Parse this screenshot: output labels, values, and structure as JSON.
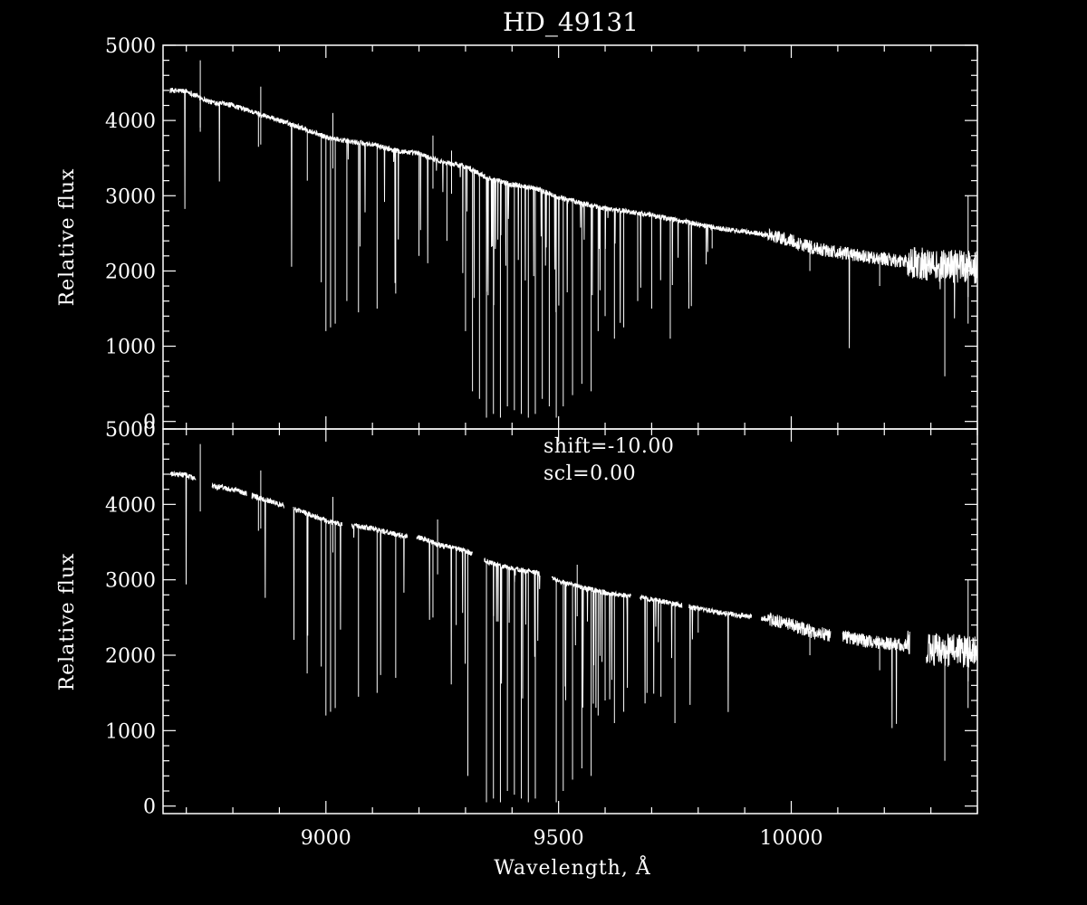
{
  "title": "HD_49131",
  "chart_data": [
    {
      "id": "top",
      "type": "line",
      "ylabel": "Relative flux",
      "xlim": [
        8650,
        10400
      ],
      "ylim": [
        -100,
        5000
      ],
      "yticks": [
        0,
        1000,
        2000,
        3000,
        4000,
        5000
      ],
      "xticks": [
        9000,
        9500,
        10000
      ],
      "x_tick_labels_shown": false,
      "annotations": [],
      "gaps": [],
      "series": [
        {
          "continuum": [
            [
              8665,
              4400
            ],
            [
              8700,
              4390
            ],
            [
              8750,
              4250
            ],
            [
              8800,
              4200
            ],
            [
              8850,
              4100
            ],
            [
              8900,
              4000
            ],
            [
              8950,
              3900
            ],
            [
              9000,
              3780
            ],
            [
              9050,
              3720
            ],
            [
              9100,
              3680
            ],
            [
              9150,
              3600
            ],
            [
              9200,
              3560
            ],
            [
              9250,
              3450
            ],
            [
              9300,
              3390
            ],
            [
              9350,
              3230
            ],
            [
              9400,
              3150
            ],
            [
              9450,
              3100
            ],
            [
              9500,
              2980
            ],
            [
              9550,
              2900
            ],
            [
              9600,
              2830
            ],
            [
              9650,
              2790
            ],
            [
              9700,
              2740
            ],
            [
              9750,
              2680
            ],
            [
              9800,
              2620
            ],
            [
              9850,
              2560
            ],
            [
              9900,
              2520
            ],
            [
              9950,
              2480
            ],
            [
              10000,
              2400
            ],
            [
              10050,
              2300
            ],
            [
              10100,
              2250
            ],
            [
              10150,
              2200
            ],
            [
              10200,
              2160
            ],
            [
              10250,
              2120
            ],
            [
              10300,
              2080
            ],
            [
              10350,
              2060
            ],
            [
              10400,
              2050
            ]
          ],
          "dips": [
            [
              8730,
              3850
            ],
            [
              8855,
              3650
            ],
            [
              8960,
              3200
            ],
            [
              8990,
              1850
            ],
            [
              9000,
              1200
            ],
            [
              9010,
              1250
            ],
            [
              9020,
              1300
            ],
            [
              9045,
              1600
            ],
            [
              9070,
              1450
            ],
            [
              9110,
              1500
            ],
            [
              9150,
              1700
            ],
            [
              9200,
              2200
            ],
            [
              9260,
              2400
            ],
            [
              9300,
              1200
            ],
            [
              9315,
              400
            ],
            [
              9330,
              300
            ],
            [
              9345,
              50
            ],
            [
              9360,
              100
            ],
            [
              9375,
              50
            ],
            [
              9390,
              200
            ],
            [
              9405,
              150
            ],
            [
              9420,
              100
            ],
            [
              9435,
              50
            ],
            [
              9450,
              100
            ],
            [
              9465,
              300
            ],
            [
              9480,
              200
            ],
            [
              9495,
              50
            ],
            [
              9510,
              200
            ],
            [
              9530,
              350
            ],
            [
              9550,
              500
            ],
            [
              9570,
              400
            ],
            [
              9585,
              1200
            ],
            [
              9600,
              1400
            ],
            [
              9620,
              1100
            ],
            [
              9640,
              1250
            ],
            [
              9670,
              1600
            ],
            [
              9700,
              1500
            ],
            [
              9740,
              1100
            ],
            [
              9780,
              1500
            ],
            [
              9830,
              2300
            ],
            [
              10040,
              2000
            ],
            [
              10190,
              1800
            ],
            [
              10330,
              600
            ],
            [
              10380,
              1300
            ]
          ],
          "spikes": [
            [
              8730,
              4800
            ],
            [
              8860,
              4450
            ],
            [
              9015,
              4100
            ],
            [
              9230,
              3800
            ],
            [
              9270,
              3600
            ],
            [
              10380,
              3000
            ]
          ]
        }
      ]
    },
    {
      "id": "bottom",
      "type": "line",
      "ylabel": "Relative flux",
      "xlabel": "Wavelength, Å",
      "xlim": [
        8650,
        10400
      ],
      "ylim": [
        -100,
        5000
      ],
      "yticks": [
        0,
        1000,
        2000,
        3000,
        4000,
        5000
      ],
      "xticks": [
        9000,
        9500,
        10000
      ],
      "x_tick_labels_shown": true,
      "annotations": [
        "shift=-10.00",
        "scl=0.00"
      ],
      "gaps": [
        [
          8720,
          8755
        ],
        [
          8830,
          8840
        ],
        [
          8910,
          8930
        ],
        [
          9035,
          9055
        ],
        [
          9175,
          9195
        ],
        [
          9315,
          9340
        ],
        [
          9460,
          9485
        ],
        [
          9655,
          9675
        ],
        [
          9765,
          9780
        ],
        [
          9915,
          9935
        ],
        [
          10085,
          10110
        ],
        [
          10255,
          10290
        ]
      ],
      "series": [
        {
          "continuum": [
            [
              8665,
              4400
            ],
            [
              8700,
              4390
            ],
            [
              8750,
              4250
            ],
            [
              8800,
              4200
            ],
            [
              8850,
              4100
            ],
            [
              8900,
              4000
            ],
            [
              8950,
              3900
            ],
            [
              9000,
              3780
            ],
            [
              9050,
              3720
            ],
            [
              9100,
              3680
            ],
            [
              9150,
              3600
            ],
            [
              9200,
              3560
            ],
            [
              9250,
              3450
            ],
            [
              9300,
              3390
            ],
            [
              9350,
              3230
            ],
            [
              9400,
              3150
            ],
            [
              9450,
              3100
            ],
            [
              9500,
              2980
            ],
            [
              9550,
              2900
            ],
            [
              9600,
              2830
            ],
            [
              9650,
              2790
            ],
            [
              9700,
              2740
            ],
            [
              9750,
              2680
            ],
            [
              9800,
              2620
            ],
            [
              9850,
              2560
            ],
            [
              9900,
              2520
            ],
            [
              9950,
              2480
            ],
            [
              10000,
              2400
            ],
            [
              10050,
              2300
            ],
            [
              10100,
              2250
            ],
            [
              10150,
              2200
            ],
            [
              10200,
              2160
            ],
            [
              10250,
              2120
            ],
            [
              10300,
              2080
            ],
            [
              10350,
              2060
            ],
            [
              10400,
              2050
            ]
          ],
          "dips": [
            [
              8730,
              3850
            ],
            [
              8855,
              3650
            ],
            [
              8960,
              3200
            ],
            [
              8990,
              1850
            ],
            [
              9000,
              1200
            ],
            [
              9010,
              1250
            ],
            [
              9020,
              1300
            ],
            [
              9070,
              1450
            ],
            [
              9110,
              1500
            ],
            [
              9150,
              1700
            ],
            [
              9230,
              2500
            ],
            [
              9280,
              2400
            ],
            [
              9305,
              400
            ],
            [
              9345,
              50
            ],
            [
              9360,
              100
            ],
            [
              9375,
              50
            ],
            [
              9390,
              200
            ],
            [
              9405,
              150
            ],
            [
              9420,
              100
            ],
            [
              9435,
              50
            ],
            [
              9450,
              100
            ],
            [
              9495,
              50
            ],
            [
              9510,
              200
            ],
            [
              9530,
              350
            ],
            [
              9550,
              500
            ],
            [
              9570,
              400
            ],
            [
              9585,
              1200
            ],
            [
              9600,
              1400
            ],
            [
              9620,
              1100
            ],
            [
              9640,
              1250
            ],
            [
              9690,
              1500
            ],
            [
              9720,
              1450
            ],
            [
              9750,
              1100
            ],
            [
              9800,
              2300
            ],
            [
              10040,
              2000
            ],
            [
              10190,
              1800
            ],
            [
              10330,
              600
            ],
            [
              10380,
              1300
            ]
          ],
          "spikes": [
            [
              8730,
              4800
            ],
            [
              8860,
              4450
            ],
            [
              9015,
              4100
            ],
            [
              9240,
              3800
            ],
            [
              9540,
              3200
            ],
            [
              10380,
              3000
            ]
          ]
        }
      ]
    }
  ]
}
